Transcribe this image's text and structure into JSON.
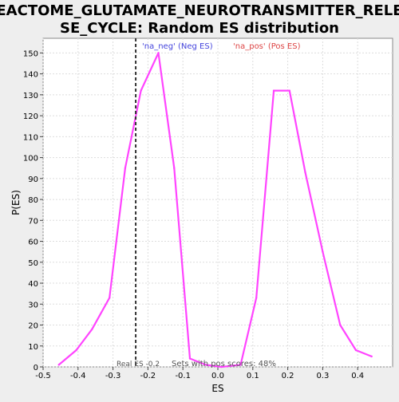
{
  "chart_data": {
    "type": "line",
    "title_lines": [
      "REACTOME_GLUTAMATE_NEUROTRANSMITTER_RELEA",
      "SE_CYCLE: Random ES distribution"
    ],
    "xlabel": "ES",
    "ylabel": "P(ES)",
    "xlim": [
      -0.5,
      0.5
    ],
    "ylim": [
      0,
      157
    ],
    "grid": true,
    "x_ticks": [
      -0.5,
      -0.4,
      -0.3,
      -0.2,
      -0.1,
      0.0,
      0.1,
      0.2,
      0.3,
      0.4
    ],
    "x_tick_labels": [
      "-0.5",
      "-0.4",
      "-0.3",
      "-0.2",
      "-0.1",
      "0.0",
      "0.1",
      "0.2",
      "0.3",
      "0.4"
    ],
    "y_ticks": [
      0,
      10,
      20,
      30,
      40,
      50,
      60,
      70,
      80,
      90,
      100,
      110,
      120,
      130,
      140,
      150
    ],
    "y_tick_labels": [
      "0",
      "10",
      "20",
      "30",
      "40",
      "50",
      "60",
      "70",
      "80",
      "90",
      "100",
      "110",
      "120",
      "130",
      "140",
      "150"
    ],
    "series": [
      {
        "color": "#ff44ff",
        "x": [
          -0.455,
          -0.405,
          -0.36,
          -0.31,
          -0.265,
          -0.22,
          -0.17,
          -0.125,
          -0.08,
          -0.035,
          0.01,
          0.065,
          0.11,
          0.16,
          0.205,
          0.25,
          0.3,
          0.35,
          0.395,
          0.44
        ],
        "y": [
          1,
          8,
          18,
          33,
          95,
          132,
          150,
          95,
          4,
          1,
          0,
          1,
          33,
          132,
          132,
          93,
          55,
          20,
          8,
          5
        ]
      }
    ],
    "real_es": {
      "x": -0.235,
      "label": "Real ES -0.2",
      "color": "#333333"
    },
    "annotations": {
      "neg_label": "'na_neg' (Neg ES)",
      "neg_color": "#4444dd",
      "pos_label": "'na_pos' (Pos ES)",
      "pos_color": "#dd4444",
      "pos_scores_label": "Sets with pos scores: 48%"
    }
  }
}
